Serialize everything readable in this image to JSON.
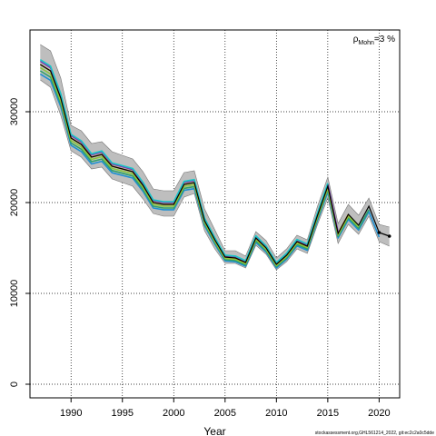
{
  "chart_data": {
    "type": "line",
    "title": "",
    "xlabel": "Year",
    "ylabel": "",
    "xlim": [
      1986,
      2022
    ],
    "ylim": [
      -1500,
      39000
    ],
    "x_ticks": [
      1990,
      1995,
      2000,
      2005,
      2010,
      2015,
      2020
    ],
    "y_ticks": [
      0,
      10000,
      20000,
      30000
    ],
    "grid": true,
    "legend": "none",
    "annotation": {
      "base": "ρ",
      "subscript": "Mohn",
      "suffix": "=3 %"
    },
    "footer": "stockassessment.org,GHL561214_2022, git:ec2c2a0c5dde",
    "colors": {
      "band": "#bebebe",
      "band_edge": "#777777",
      "main": "#000000",
      "peels": [
        "#1f8fd1",
        "#2ea06a",
        "#8cc63f",
        "#d4a017",
        "#7b3fb0",
        "#18c6c6"
      ]
    },
    "series": [
      {
        "x": [
          1987,
          1988,
          1989,
          1990,
          1991,
          1992,
          1993,
          1994,
          1995,
          1996,
          1997,
          1998,
          1999,
          2000,
          2001,
          2002,
          2003,
          2004,
          2005,
          2006,
          2007,
          2008,
          2009,
          2010,
          2011,
          2012,
          2013,
          2014,
          2015,
          2016,
          2017,
          2018,
          2019,
          2020,
          2021
        ],
        "values": [
          35200,
          34500,
          31500,
          27100,
          26400,
          25000,
          25300,
          24000,
          23700,
          23400,
          21900,
          20000,
          19800,
          19800,
          22000,
          22200,
          18000,
          15900,
          14000,
          13900,
          13400,
          16100,
          15000,
          13200,
          14200,
          15700,
          15200,
          18600,
          21800,
          16600,
          18700,
          17500,
          19600,
          16700,
          16300
        ],
        "lower": [
          33500,
          32700,
          29600,
          25700,
          25000,
          23700,
          23900,
          22600,
          22200,
          21800,
          20400,
          18800,
          18500,
          18500,
          20600,
          21000,
          16900,
          14900,
          13300,
          13300,
          12800,
          15300,
          14300,
          12600,
          13500,
          14900,
          14400,
          17600,
          20500,
          15500,
          17600,
          16500,
          18500,
          15700,
          15200
        ],
        "upper": [
          37400,
          36700,
          33700,
          28500,
          27900,
          26500,
          26700,
          25600,
          25200,
          24800,
          23400,
          21500,
          21300,
          21300,
          23300,
          23500,
          19300,
          17000,
          14700,
          14700,
          14100,
          16800,
          15800,
          13900,
          14900,
          16400,
          15900,
          19600,
          22800,
          17700,
          19800,
          18600,
          20500,
          17600,
          17300
        ]
      }
    ]
  }
}
